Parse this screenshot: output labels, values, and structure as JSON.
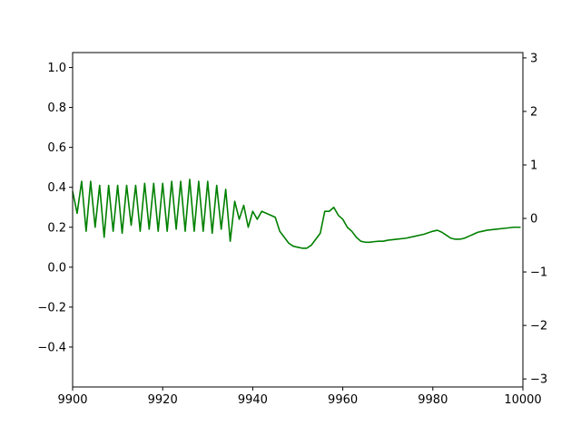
{
  "chart_data": {
    "type": "line",
    "title": "",
    "xlabel": "",
    "ylabel": "",
    "y2label": "",
    "xlim": [
      9900,
      10000
    ],
    "ylim": [
      -0.6,
      1.075
    ],
    "y2lim": [
      -3.15,
      3.1
    ],
    "grid": false,
    "legend": "none",
    "x_ticks": [
      "9900",
      "9920",
      "9940",
      "9960",
      "9980",
      "10000"
    ],
    "y_ticks": [
      "−0.4",
      "−0.2",
      "0.0",
      "0.2",
      "0.4",
      "0.6",
      "0.8",
      "1.0"
    ],
    "y2_ticks": [
      "−3",
      "−2",
      "−1",
      "0",
      "1",
      "2",
      "3"
    ],
    "series": [
      {
        "color": "#008000",
        "axis": "left",
        "x": [
          9900,
          9901,
          9902,
          9903,
          9904,
          9905,
          9906,
          9907,
          9908,
          9909,
          9910,
          9911,
          9912,
          9913,
          9914,
          9915,
          9916,
          9917,
          9918,
          9919,
          9920,
          9921,
          9922,
          9923,
          9924,
          9925,
          9926,
          9927,
          9928,
          9929,
          9930,
          9931,
          9932,
          9933,
          9934,
          9935,
          9936,
          9937,
          9938,
          9939,
          9940,
          9941,
          9942,
          9943,
          9944,
          9945,
          9946,
          9947,
          9948,
          9949,
          9950,
          9951,
          9952,
          9953,
          9954,
          9955,
          9956,
          9957,
          9958,
          9959,
          9960,
          9961,
          9962,
          9963,
          9964,
          9965,
          9966,
          9967,
          9968,
          9969,
          9970,
          9972,
          9974,
          9976,
          9978,
          9980,
          9981,
          9982,
          9983,
          9984,
          9985,
          9986,
          9987,
          9988,
          9989,
          9990,
          9991,
          9992,
          9994,
          9996,
          9998,
          9999.5
        ],
        "y": [
          0.38,
          0.27,
          0.43,
          0.18,
          0.43,
          0.2,
          0.41,
          0.15,
          0.41,
          0.18,
          0.41,
          0.17,
          0.41,
          0.21,
          0.41,
          0.18,
          0.42,
          0.19,
          0.42,
          0.18,
          0.42,
          0.18,
          0.43,
          0.19,
          0.43,
          0.18,
          0.44,
          0.18,
          0.43,
          0.18,
          0.43,
          0.17,
          0.41,
          0.19,
          0.39,
          0.13,
          0.33,
          0.24,
          0.31,
          0.2,
          0.28,
          0.24,
          0.28,
          0.27,
          0.26,
          0.25,
          0.18,
          0.15,
          0.12,
          0.105,
          0.1,
          0.095,
          0.095,
          0.11,
          0.14,
          0.17,
          0.28,
          0.28,
          0.3,
          0.26,
          0.24,
          0.2,
          0.18,
          0.15,
          0.13,
          0.125,
          0.125,
          0.128,
          0.13,
          0.13,
          0.135,
          0.14,
          0.145,
          0.155,
          0.165,
          0.18,
          0.185,
          0.175,
          0.16,
          0.145,
          0.14,
          0.14,
          0.145,
          0.155,
          0.165,
          0.175,
          0.18,
          0.185,
          0.19,
          0.195,
          0.2,
          0.2
        ]
      }
    ]
  }
}
